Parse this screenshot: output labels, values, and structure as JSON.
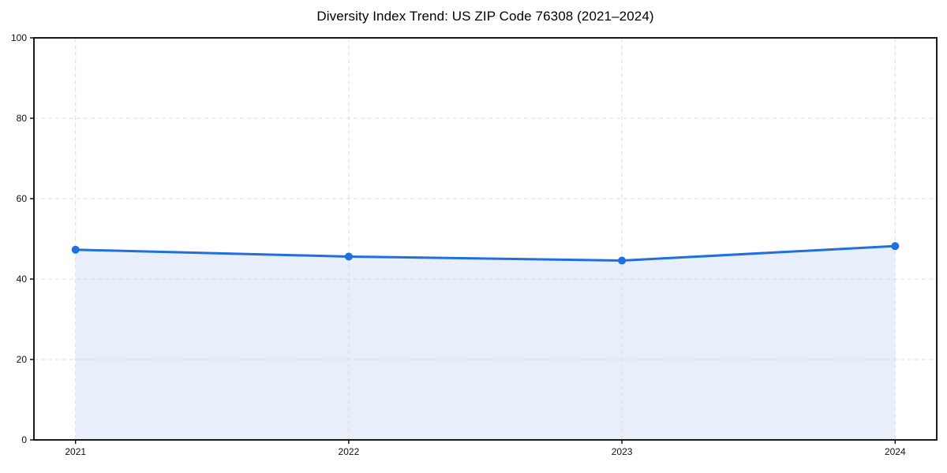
{
  "page": {
    "title": "Diversity Index Trend: US ZIP Code 76308 (2021–2024)"
  },
  "chart_data": {
    "type": "line",
    "title": "Diversity Index Trend: US ZIP Code 76308 (2021–2024)",
    "categories": [
      "2021",
      "2022",
      "2023",
      "2024"
    ],
    "series": [
      {
        "name": "Diversity Index",
        "values": [
          47.3,
          45.6,
          44.6,
          48.2
        ]
      }
    ],
    "xlabel": "",
    "ylabel": "",
    "ylim": [
      0,
      100
    ],
    "yticks": [
      0,
      20,
      40,
      60,
      80,
      100
    ],
    "grid": true,
    "grid_style": "dashed",
    "legend": false,
    "marker": "circle",
    "colors": {
      "line": "#1f6fe0",
      "marker": "#1f6fe0",
      "area_fill": "#e8effb",
      "gridline": "#dcdcdc",
      "spine": "#000000",
      "tick_label": "#111111",
      "background": "#ffffff"
    }
  }
}
